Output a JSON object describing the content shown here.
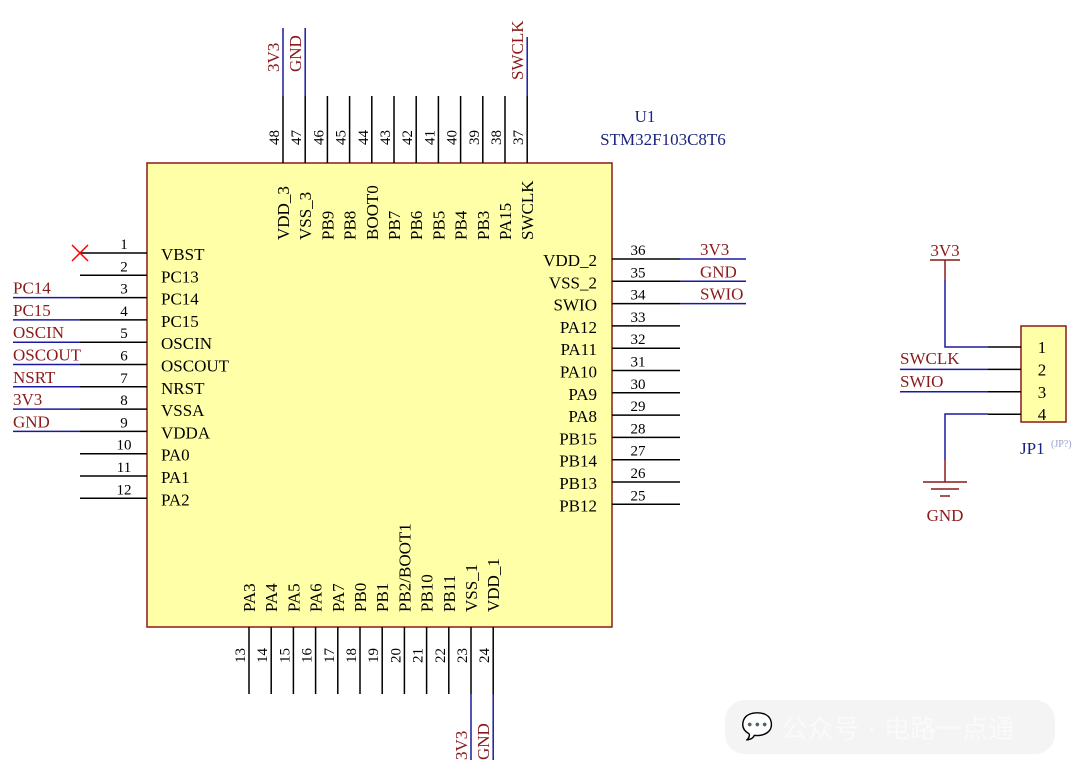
{
  "component": {
    "ref": "U1",
    "value": "STM32F103C8T6",
    "colors": {
      "body": "#ffffa8",
      "outline": "#8b1a1a",
      "wire": "#1a1aa0",
      "net_label": "#8b1a1a",
      "no_connect": "#ff0000"
    }
  },
  "left_pins": [
    {
      "num": "1",
      "name": "VBST",
      "net": "",
      "no_connect": true
    },
    {
      "num": "2",
      "name": "PC13",
      "net": ""
    },
    {
      "num": "3",
      "name": "PC14",
      "net": "PC14"
    },
    {
      "num": "4",
      "name": "PC15",
      "net": "PC15"
    },
    {
      "num": "5",
      "name": "OSCIN",
      "net": "OSCIN"
    },
    {
      "num": "6",
      "name": "OSCOUT",
      "net": "OSCOUT"
    },
    {
      "num": "7",
      "name": "NRST",
      "net": "NSRT"
    },
    {
      "num": "8",
      "name": "VSSA",
      "net": "3V3"
    },
    {
      "num": "9",
      "name": "VDDA",
      "net": "GND"
    },
    {
      "num": "10",
      "name": "PA0",
      "net": ""
    },
    {
      "num": "11",
      "name": "PA1",
      "net": ""
    },
    {
      "num": "12",
      "name": "PA2",
      "net": ""
    }
  ],
  "bottom_pins": [
    {
      "num": "13",
      "name": "PA3",
      "net": ""
    },
    {
      "num": "14",
      "name": "PA4",
      "net": ""
    },
    {
      "num": "15",
      "name": "PA5",
      "net": ""
    },
    {
      "num": "16",
      "name": "PA6",
      "net": ""
    },
    {
      "num": "17",
      "name": "PA7",
      "net": ""
    },
    {
      "num": "18",
      "name": "PB0",
      "net": ""
    },
    {
      "num": "19",
      "name": "PB1",
      "net": ""
    },
    {
      "num": "20",
      "name": "PB2/BOOT1",
      "net": ""
    },
    {
      "num": "21",
      "name": "PB10",
      "net": ""
    },
    {
      "num": "22",
      "name": "PB11",
      "net": ""
    },
    {
      "num": "23",
      "name": "VSS_1",
      "net": "3V3"
    },
    {
      "num": "24",
      "name": "VDD_1",
      "net": "GND"
    }
  ],
  "right_pins": [
    {
      "num": "36",
      "name": "VDD_2",
      "net": "3V3"
    },
    {
      "num": "35",
      "name": "VSS_2",
      "net": "GND"
    },
    {
      "num": "34",
      "name": "SWIO",
      "net": "SWIO"
    },
    {
      "num": "33",
      "name": "PA12",
      "net": ""
    },
    {
      "num": "32",
      "name": "PA11",
      "net": ""
    },
    {
      "num": "31",
      "name": "PA10",
      "net": ""
    },
    {
      "num": "30",
      "name": "PA9",
      "net": ""
    },
    {
      "num": "29",
      "name": "PA8",
      "net": ""
    },
    {
      "num": "28",
      "name": "PB15",
      "net": ""
    },
    {
      "num": "27",
      "name": "PB14",
      "net": ""
    },
    {
      "num": "26",
      "name": "PB13",
      "net": ""
    },
    {
      "num": "25",
      "name": "PB12",
      "net": ""
    }
  ],
  "top_pins": [
    {
      "num": "48",
      "name": "VDD_3",
      "net": "3V3"
    },
    {
      "num": "47",
      "name": "VSS_3",
      "net": "GND"
    },
    {
      "num": "46",
      "name": "PB9",
      "net": ""
    },
    {
      "num": "45",
      "name": "PB8",
      "net": ""
    },
    {
      "num": "44",
      "name": "BOOT0",
      "net": ""
    },
    {
      "num": "43",
      "name": "PB7",
      "net": ""
    },
    {
      "num": "42",
      "name": "PB6",
      "net": ""
    },
    {
      "num": "41",
      "name": "PB5",
      "net": ""
    },
    {
      "num": "40",
      "name": "PB4",
      "net": ""
    },
    {
      "num": "39",
      "name": "PB3",
      "net": ""
    },
    {
      "num": "38",
      "name": "PA15",
      "net": ""
    },
    {
      "num": "37",
      "name": "SWCLK",
      "net": "SWCLK"
    }
  ],
  "connector": {
    "ref": "JP1",
    "alt_ref": "(JP?)",
    "pins": [
      "1",
      "2",
      "3",
      "4"
    ],
    "power_net": "3V3",
    "ground_net": "GND",
    "signal_nets": [
      "SWCLK",
      "SWIO"
    ]
  },
  "watermark": {
    "text": "公众号 · 电路一点通",
    "icon": "wechat-icon"
  }
}
